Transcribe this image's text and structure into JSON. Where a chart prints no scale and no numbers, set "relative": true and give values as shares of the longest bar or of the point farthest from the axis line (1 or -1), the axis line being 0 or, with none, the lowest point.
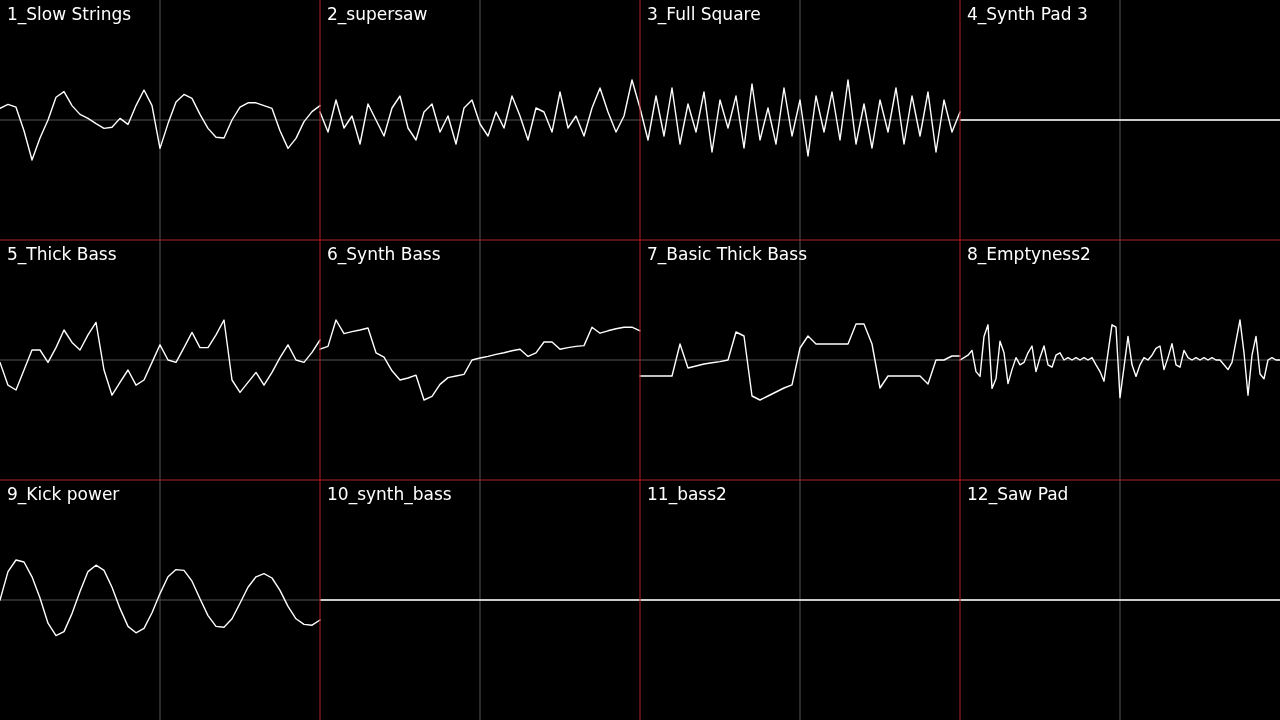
{
  "chart_data": [
    {
      "type": "line",
      "title": "1_Slow Strings",
      "relative": true,
      "grid": true,
      "categories": [
        null,
        null,
        null,
        null,
        null,
        null,
        null,
        null,
        null,
        null,
        null,
        null,
        null,
        null,
        null,
        null,
        null,
        null,
        null,
        null,
        null,
        null,
        null,
        null,
        null,
        null,
        null,
        null,
        null,
        null,
        null,
        null,
        null,
        null,
        null,
        null,
        null,
        null,
        null,
        null,
        null
      ],
      "series": [
        {
          "color": "#ffffff",
          "values": [
            0.29,
            0.39,
            0.32,
            -0.27,
            -1,
            -0.45,
            0,
            0.57,
            0.71,
            0.36,
            0.14,
            0.04,
            -0.09,
            -0.21,
            -0.18,
            0.04,
            -0.11,
            0.36,
            0.75,
            0.36,
            -0.71,
            -0.09,
            0.45,
            0.64,
            0.54,
            0.14,
            -0.21,
            -0.43,
            -0.45,
            0,
            0.32,
            0.43,
            0.43,
            0.36,
            0.29,
            -0.27,
            -0.71,
            -0.46,
            -0.04,
            0.21,
            0.36
          ]
        }
      ]
    },
    {
      "type": "line",
      "title": "2_supersaw",
      "relative": true,
      "grid": true,
      "categories": [
        null,
        null,
        null,
        null,
        null,
        null,
        null,
        null,
        null,
        null,
        null,
        null,
        null,
        null,
        null,
        null,
        null,
        null,
        null,
        null,
        null,
        null,
        null,
        null,
        null,
        null,
        null,
        null,
        null,
        null,
        null,
        null,
        null,
        null,
        null,
        null,
        null,
        null,
        null,
        null,
        null
      ],
      "series": [
        {
          "color": "#ffffff",
          "values": [
            0.2,
            -0.3,
            0.5,
            -0.2,
            0.1,
            -0.6,
            0.4,
            0,
            -0.4,
            0.3,
            0.6,
            -0.2,
            -0.5,
            0.2,
            0.4,
            -0.3,
            0.1,
            -0.6,
            0.3,
            0.5,
            -0.1,
            -0.4,
            0.2,
            -0.2,
            0.6,
            0.1,
            -0.5,
            0.3,
            0.2,
            -0.3,
            0.7,
            -0.2,
            0.1,
            -0.4,
            0.3,
            0.8,
            0.2,
            -0.3,
            0.1,
            1,
            0.3
          ]
        }
      ]
    },
    {
      "type": "line",
      "title": "3_Full Square",
      "relative": true,
      "grid": true,
      "categories": [
        null,
        null,
        null,
        null,
        null,
        null,
        null,
        null,
        null,
        null,
        null,
        null,
        null,
        null,
        null,
        null,
        null,
        null,
        null,
        null,
        null,
        null,
        null,
        null,
        null,
        null,
        null,
        null,
        null,
        null,
        null,
        null,
        null,
        null,
        null,
        null,
        null,
        null,
        null,
        null,
        null
      ],
      "series": [
        {
          "color": "#ffffff",
          "values": [
            0.3,
            -0.5,
            0.6,
            -0.4,
            0.8,
            -0.6,
            0.4,
            -0.3,
            0.7,
            -0.8,
            0.5,
            -0.2,
            0.6,
            -0.7,
            0.9,
            -0.5,
            0.3,
            -0.6,
            0.8,
            -0.4,
            0.5,
            -0.9,
            0.6,
            -0.3,
            0.7,
            -0.5,
            1,
            -0.6,
            0.4,
            -0.7,
            0.5,
            -0.3,
            0.8,
            -0.6,
            0.6,
            -0.4,
            0.7,
            -0.8,
            0.5,
            -0.3,
            0.2
          ]
        }
      ]
    },
    {
      "type": "other",
      "title": "4_Synth Pad 3"
    },
    {
      "type": "line",
      "title": "5_Thick Bass",
      "relative": true,
      "grid": true,
      "categories": [
        null,
        null,
        null,
        null,
        null,
        null,
        null,
        null,
        null,
        null,
        null,
        null,
        null,
        null,
        null,
        null,
        null,
        null,
        null,
        null,
        null,
        null,
        null,
        null,
        null,
        null,
        null,
        null,
        null,
        null,
        null,
        null,
        null,
        null,
        null,
        null,
        null,
        null,
        null,
        null,
        null
      ],
      "series": [
        {
          "color": "#ffffff",
          "values": [
            -0.06,
            -0.63,
            -0.75,
            -0.25,
            0.25,
            0.25,
            -0.06,
            0.31,
            0.75,
            0.44,
            0.25,
            0.63,
            0.94,
            -0.25,
            -0.88,
            -0.56,
            -0.25,
            -0.63,
            -0.5,
            -0.06,
            0.38,
            0,
            -0.06,
            0.31,
            0.69,
            0.31,
            0.31,
            0.63,
            1,
            -0.5,
            -0.81,
            -0.56,
            -0.31,
            -0.63,
            -0.31,
            0.06,
            0.38,
            0,
            -0.06,
            0.19,
            0.5
          ]
        }
      ]
    },
    {
      "type": "line",
      "title": "6_Synth Bass",
      "relative": true,
      "grid": true,
      "categories": [
        null,
        null,
        null,
        null,
        null,
        null,
        null,
        null,
        null,
        null,
        null,
        null,
        null,
        null,
        null,
        null,
        null,
        null,
        null,
        null,
        null,
        null,
        null,
        null,
        null,
        null,
        null,
        null,
        null,
        null,
        null,
        null,
        null,
        null,
        null,
        null,
        null,
        null,
        null,
        null,
        null
      ],
      "series": [
        {
          "color": "#ffffff",
          "values": [
            0.27,
            0.34,
            1,
            0.66,
            0.71,
            0.75,
            0.8,
            0.18,
            0.07,
            -0.27,
            -0.5,
            -0.45,
            -0.38,
            -1,
            -0.91,
            -0.61,
            -0.44,
            -0.4,
            -0.36,
            0,
            0.05,
            0.09,
            0.14,
            0.18,
            0.23,
            0.27,
            0.09,
            0.18,
            0.45,
            0.45,
            0.27,
            0.31,
            0.34,
            0.36,
            0.82,
            0.67,
            0.73,
            0.78,
            0.82,
            0.82,
            0.73
          ]
        }
      ]
    },
    {
      "type": "line",
      "title": "7_Basic Thick Bass",
      "relative": true,
      "grid": true,
      "categories": [
        null,
        null,
        null,
        null,
        null,
        null,
        null,
        null,
        null,
        null,
        null,
        null,
        null,
        null,
        null,
        null,
        null,
        null,
        null,
        null,
        null,
        null,
        null,
        null,
        null,
        null,
        null,
        null,
        null,
        null,
        null,
        null,
        null,
        null,
        null,
        null,
        null,
        null,
        null,
        null,
        null
      ],
      "series": [
        {
          "color": "#ffffff",
          "values": [
            -0.4,
            -0.4,
            -0.4,
            -0.4,
            -0.4,
            0.4,
            -0.2,
            -0.15,
            -0.1,
            -0.07,
            -0.04,
            0,
            0.7,
            0.6,
            -0.9,
            -1,
            -0.9,
            -0.8,
            -0.7,
            -0.62,
            0.3,
            0.6,
            0.4,
            0.4,
            0.4,
            0.4,
            0.4,
            0.9,
            0.9,
            0.4,
            -0.7,
            -0.4,
            -0.4,
            -0.4,
            -0.4,
            -0.4,
            -0.6,
            0,
            0,
            0.1,
            0.1
          ]
        }
      ]
    },
    {
      "type": "line",
      "title": "8_Emptyness2",
      "relative": true,
      "grid": true,
      "categories": [
        null,
        null,
        null,
        null,
        null,
        null,
        null,
        null,
        null,
        null,
        null,
        null,
        null,
        null,
        null,
        null,
        null,
        null,
        null,
        null,
        null,
        null,
        null,
        null,
        null,
        null,
        null,
        null,
        null,
        null,
        null,
        null,
        null,
        null,
        null,
        null,
        null,
        null,
        null,
        null,
        null,
        null,
        null,
        null,
        null,
        null,
        null,
        null,
        null,
        null,
        null,
        null,
        null,
        null,
        null,
        null,
        null,
        null,
        null,
        null,
        null,
        null,
        null,
        null,
        null,
        null,
        null,
        null,
        null,
        null,
        null,
        null,
        null,
        null,
        null,
        null,
        null,
        null,
        null,
        null,
        null
      ],
      "series": [
        {
          "color": "#ffffff",
          "values": [
            0,
            0.06,
            0.12,
            0.24,
            -0.29,
            -0.41,
            0.59,
            0.88,
            -0.71,
            -0.47,
            0.47,
            0.18,
            -0.59,
            -0.24,
            0.06,
            -0.12,
            -0.06,
            0.18,
            0.35,
            -0.29,
            0.06,
            0.35,
            -0.12,
            -0.18,
            0.12,
            0.18,
            0,
            0.06,
            0,
            0.06,
            0,
            0.06,
            0,
            0.06,
            -0.12,
            -0.29,
            -0.53,
            0.18,
            0.88,
            0.82,
            -0.94,
            -0.18,
            0.59,
            -0.12,
            -0.41,
            -0.12,
            0.06,
            0,
            0.12,
            0.29,
            0.35,
            -0.24,
            0.06,
            0.41,
            -0.12,
            -0.18,
            0.24,
            0.06,
            0,
            0.06,
            0,
            0.06,
            0,
            0.06,
            0,
            0,
            -0.12,
            -0.24,
            -0.06,
            0.47,
            1,
            0.18,
            -0.88,
            0.12,
            0.59,
            -0.35,
            -0.47,
            0,
            0.06,
            0,
            0
          ]
        }
      ]
    },
    {
      "type": "line",
      "title": "9_Kick power",
      "relative": true,
      "grid": true,
      "categories": [
        null,
        null,
        null,
        null,
        null,
        null,
        null,
        null,
        null,
        null,
        null,
        null,
        null,
        null,
        null,
        null,
        null,
        null,
        null,
        null,
        null,
        null,
        null,
        null,
        null,
        null,
        null,
        null,
        null,
        null,
        null,
        null,
        null,
        null,
        null,
        null,
        null,
        null,
        null,
        null,
        null
      ],
      "series": [
        {
          "color": "#ffffff",
          "values": [
            0,
            0.71,
            1,
            0.95,
            0.58,
            0.05,
            -0.58,
            -0.89,
            -0.79,
            -0.34,
            0.21,
            0.71,
            0.87,
            0.74,
            0.32,
            -0.21,
            -0.66,
            -0.82,
            -0.71,
            -0.32,
            0.16,
            0.58,
            0.76,
            0.74,
            0.47,
            0.03,
            -0.39,
            -0.66,
            -0.68,
            -0.47,
            -0.08,
            0.32,
            0.58,
            0.66,
            0.55,
            0.24,
            -0.16,
            -0.47,
            -0.61,
            -0.63,
            -0.5
          ]
        }
      ]
    },
    {
      "type": "other",
      "title": "10_synth_bass"
    },
    {
      "type": "other",
      "title": "11_bass2"
    },
    {
      "type": "other",
      "title": "12_Saw Pad"
    }
  ]
}
